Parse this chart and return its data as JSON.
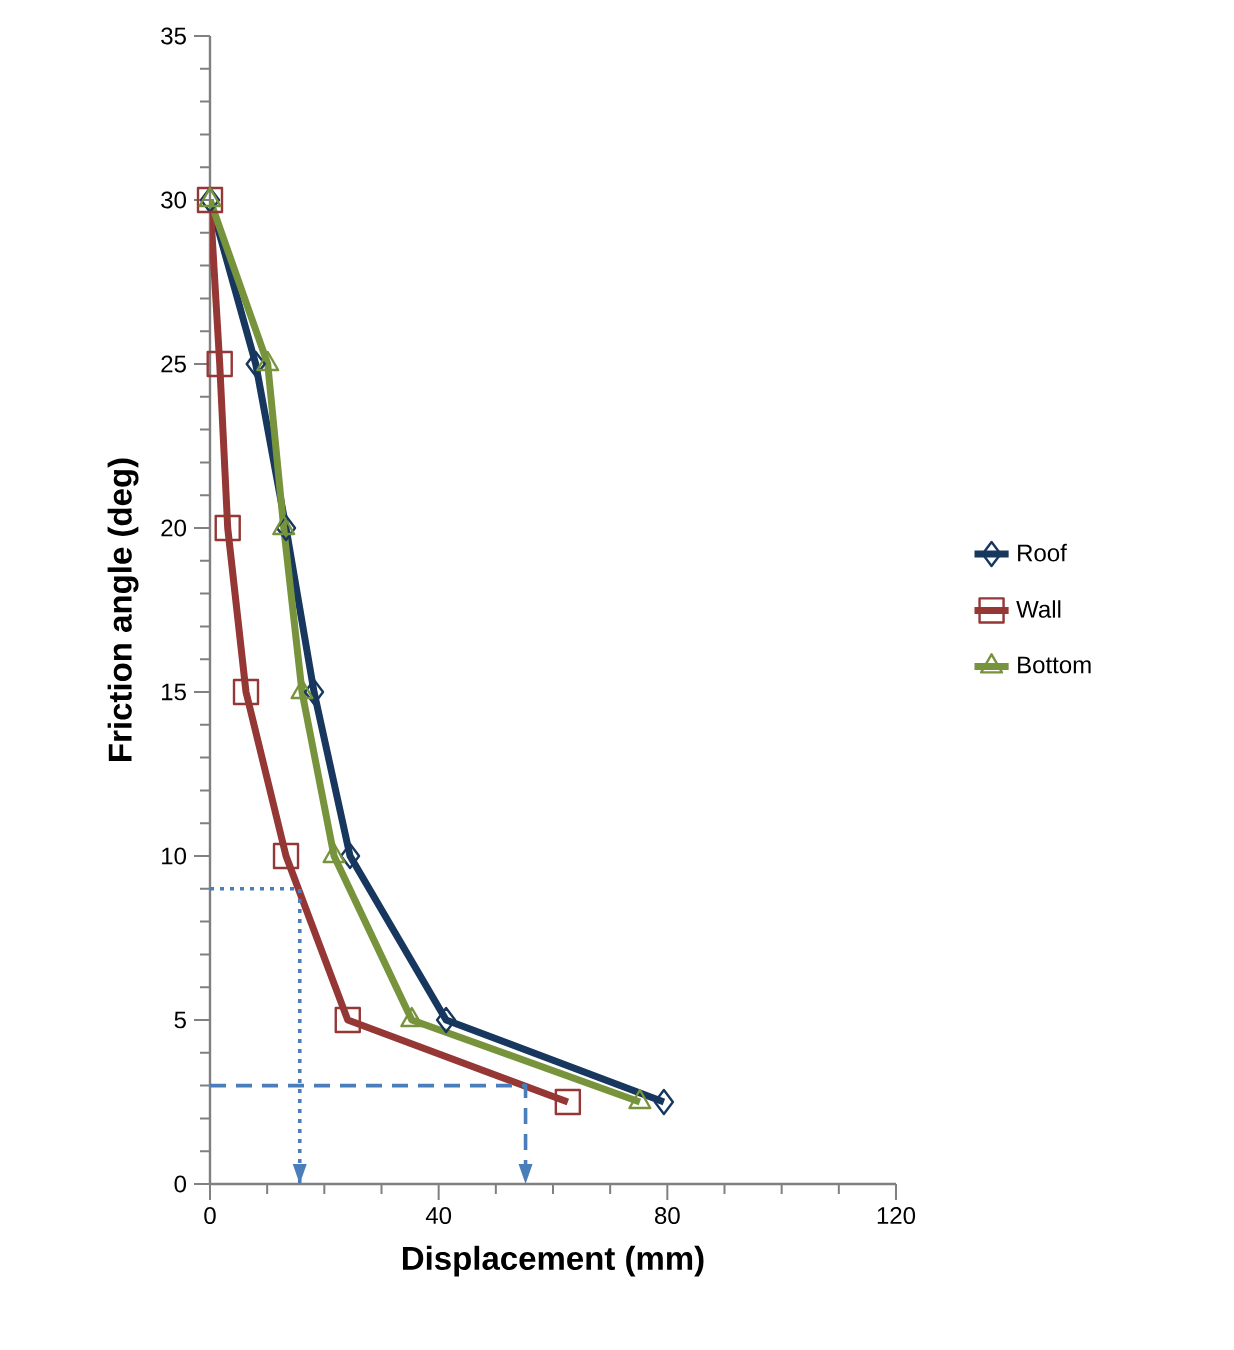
{
  "chart_data": {
    "type": "line",
    "xlabel": "Displacement (mm)",
    "ylabel": "Friction angle (deg)",
    "xlim": [
      0,
      120
    ],
    "xticks": [
      0,
      40,
      80,
      120
    ],
    "ylim": [
      0,
      35
    ],
    "yticks": [
      0,
      5,
      10,
      15,
      20,
      25,
      30,
      35
    ],
    "grid": false,
    "legend": "right",
    "series": [
      {
        "name": "Roof",
        "color": "#17375e",
        "marker": "diamond",
        "x": [
          0,
          8.0,
          13.3,
          18.2,
          24.5,
          41.3,
          79.4
        ],
        "values": [
          30,
          25,
          20,
          15,
          10,
          5,
          2.5
        ]
      },
      {
        "name": "Wall",
        "color": "#953735",
        "marker": "square",
        "x": [
          0,
          1.7,
          3.1,
          6.3,
          13.3,
          24.1,
          62.6
        ],
        "values": [
          30,
          25,
          20,
          15,
          10,
          5,
          2.5
        ]
      },
      {
        "name": "Bottom",
        "color": "#77933c",
        "marker": "triangle",
        "x": [
          0,
          10.1,
          12.9,
          16.1,
          21.7,
          35.3,
          75.2
        ],
        "values": [
          30,
          25,
          20,
          15,
          10,
          5,
          2.5
        ]
      },
      {
        "color": "#4a7ebb",
        "marker": "none",
        "line_style": "dotted",
        "x": [
          0,
          15.7,
          15.7
        ],
        "values": [
          9,
          9,
          0
        ]
      },
      {
        "color": "#4a7ebb",
        "marker": "none",
        "line_style": "dashed",
        "x": [
          0,
          55.2,
          55.2
        ],
        "values": [
          3,
          3,
          0
        ]
      }
    ]
  }
}
